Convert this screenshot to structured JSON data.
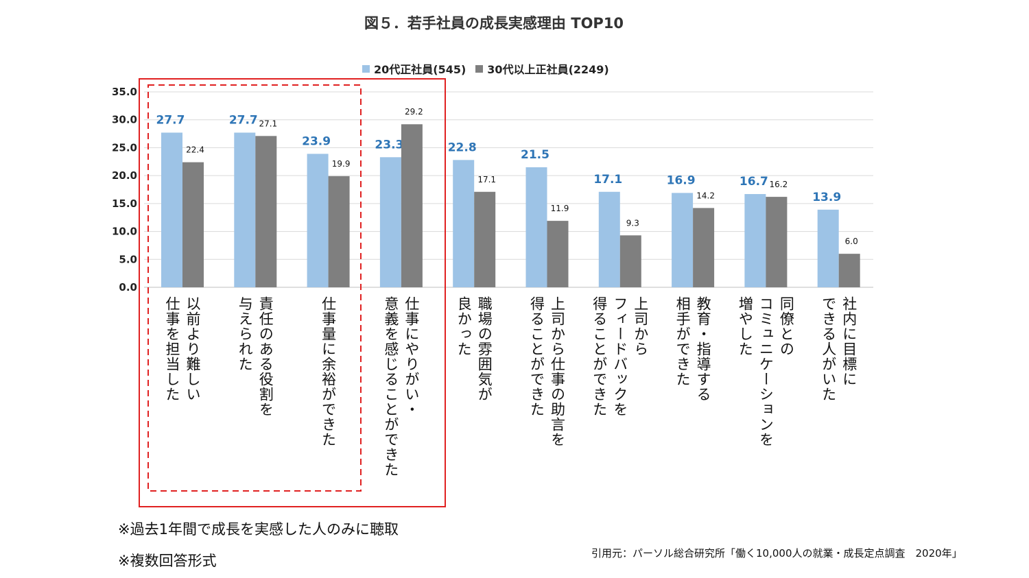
{
  "chart_data": {
    "type": "bar",
    "title": "図５．若手社員の成長実感理由 TOP10",
    "xlabel": "",
    "ylabel": "",
    "ylim": [
      0,
      35
    ],
    "yticks": [
      "35.0",
      "30.0",
      "25.0",
      "20.0",
      "15.0",
      "10.0",
      "5.0",
      "0.0"
    ],
    "categories": [
      "以前より難しい\n仕事を担当した",
      "責任のある役割を\n与えられた",
      "仕事量に余裕ができた",
      "仕事にやりがい・\n意義を感じることができた",
      "職場の雰囲気が\n良かった",
      "上司から仕事の助言を\n得ることができた",
      "上司から\nフィードバックを\n得ることができた",
      "教育・指導する\n相手ができた",
      "同僚との\nコミュニケーションを\n増やした",
      "社内に目標に\nできる人がいた"
    ],
    "series": [
      {
        "name": "20代正社員(545)",
        "color": "#9dc3e6",
        "values": [
          27.7,
          27.7,
          23.9,
          23.3,
          22.8,
          21.5,
          17.1,
          16.9,
          16.7,
          13.9
        ],
        "labels": [
          "27.7",
          "27.7",
          "23.9",
          "23.3",
          "22.8",
          "21.5",
          "17.1",
          "16.9",
          "16.7",
          "13.9"
        ]
      },
      {
        "name": "30代以上正社員(2249)",
        "color": "#7f7f7f",
        "values": [
          22.4,
          27.1,
          19.9,
          29.2,
          17.1,
          11.9,
          9.3,
          14.2,
          16.2,
          6.0
        ],
        "labels": [
          "22.4",
          "27.1",
          "19.9",
          "29.2",
          "17.1",
          "11.9",
          "9.3",
          "14.2",
          "16.2",
          "6.0"
        ]
      }
    ],
    "legend": "top"
  },
  "notes": {
    "note1": "※過去1年間で成長を実感した人のみに聴取",
    "note2": "※複数回答形式",
    "source": "引用元：パーソル総合研究所「働く10,000人の就業・成長定点調査　2020年」"
  },
  "colors": {
    "highlight_solid": "#e02020",
    "highlight_dashed": "#e02020",
    "grid": "#d9d9d9"
  }
}
